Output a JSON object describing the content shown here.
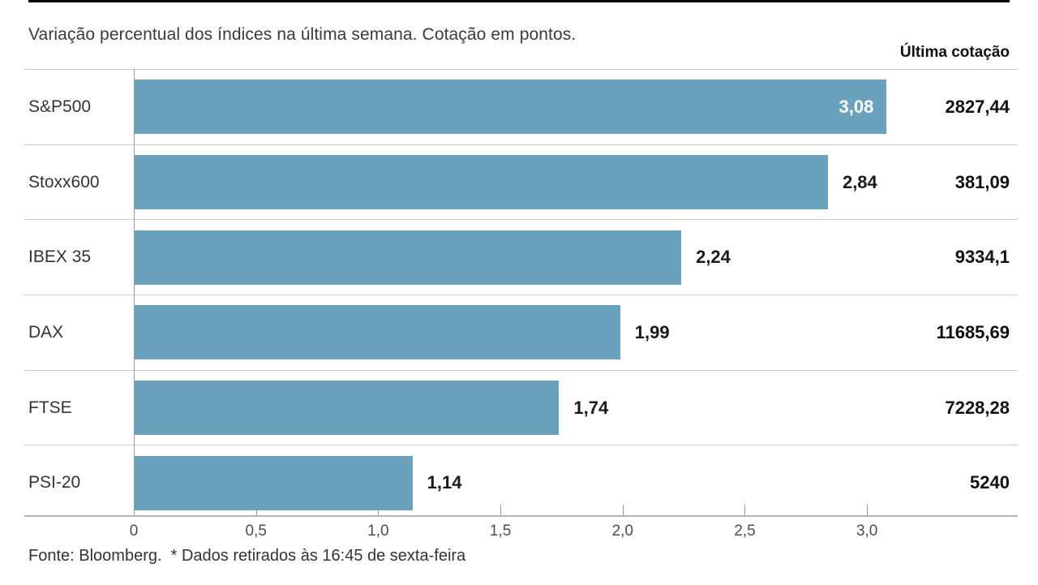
{
  "chart": {
    "title": "Variação percentual dos índices na última semana. Cotação em pontos.",
    "quote_column_header": "Última cotação",
    "source": "Fonte: Bloomberg.  * Dados retirados às 16:45 de sexta-feira"
  },
  "chart_data": {
    "type": "bar",
    "orientation": "horizontal",
    "title": "Variação percentual dos índices na última semana. Cotação em pontos.",
    "categories": [
      "S&P500",
      "Stoxx600",
      "IBEX 35",
      "DAX",
      "FTSE",
      "PSI-20"
    ],
    "values": [
      3.08,
      2.84,
      2.24,
      1.99,
      1.74,
      1.14
    ],
    "value_labels": [
      "3,08",
      "2,84",
      "2,24",
      "1,99",
      "1,74",
      "1,14"
    ],
    "quotes": [
      "2827,44",
      "381,09",
      "9334,1",
      "11685,69",
      "7228,28",
      "5240"
    ],
    "quote_column_header": "Última cotação",
    "xlabel": "",
    "ylabel": "",
    "xlim": [
      0,
      3.6
    ],
    "x_ticks": [
      {
        "value": 0,
        "label": "0"
      },
      {
        "value": 0.5,
        "label": "0,5"
      },
      {
        "value": 1.0,
        "label": "1,0"
      },
      {
        "value": 1.5,
        "label": "1,5"
      },
      {
        "value": 2.0,
        "label": "2,0"
      },
      {
        "value": 2.5,
        "label": "2,5"
      },
      {
        "value": 3.0,
        "label": "3,0"
      }
    ],
    "grid": true,
    "legend": false,
    "bar_color": "#6aa2bd",
    "grid_color": "#cccccc",
    "source": "Fonte: Bloomberg. * Dados retirados às 16:45 de sexta-feira"
  }
}
